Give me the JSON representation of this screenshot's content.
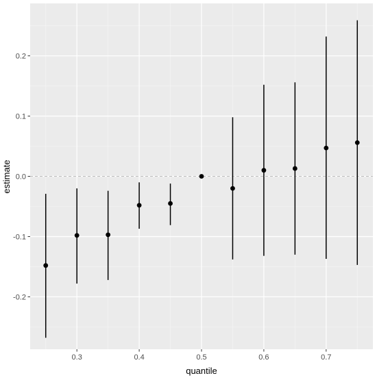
{
  "chart_data": {
    "type": "scatter",
    "style": "point estimates with error bars (ggplot2 grey theme)",
    "xlabel": "quantile",
    "ylabel": "estimate",
    "xlim": [
      0.225,
      0.775
    ],
    "ylim": [
      -0.287,
      0.287
    ],
    "x_ticks": [
      0.3,
      0.4,
      0.5,
      0.6,
      0.7
    ],
    "x_tick_labels": [
      "0.3",
      "0.4",
      "0.5",
      "0.6",
      "0.7"
    ],
    "y_ticks": [
      -0.2,
      -0.1,
      0.0,
      0.1,
      0.2
    ],
    "y_tick_labels": [
      "-0.2",
      "-0.1",
      "0.0",
      "0.1",
      "0.2"
    ],
    "reference_line": {
      "y": 0,
      "style": "dashed"
    },
    "grid": true,
    "colors": {
      "panel": "#EBEBEB",
      "grid_major": "#FFFFFF",
      "grid_minor": "#F5F5F5",
      "marks": "#000000",
      "reference_line": "#BEBEBE"
    },
    "points": [
      {
        "x": 0.25,
        "y": -0.148,
        "lower": -0.268,
        "upper": -0.029
      },
      {
        "x": 0.3,
        "y": -0.098,
        "lower": -0.178,
        "upper": -0.02
      },
      {
        "x": 0.35,
        "y": -0.097,
        "lower": -0.172,
        "upper": -0.024
      },
      {
        "x": 0.4,
        "y": -0.048,
        "lower": -0.087,
        "upper": -0.01
      },
      {
        "x": 0.45,
        "y": -0.045,
        "lower": -0.081,
        "upper": -0.012
      },
      {
        "x": 0.5,
        "y": 0.0,
        "lower": 0.0,
        "upper": 0.0
      },
      {
        "x": 0.55,
        "y": -0.02,
        "lower": -0.138,
        "upper": 0.098
      },
      {
        "x": 0.6,
        "y": 0.01,
        "lower": -0.132,
        "upper": 0.152
      },
      {
        "x": 0.65,
        "y": 0.013,
        "lower": -0.13,
        "upper": 0.156
      },
      {
        "x": 0.7,
        "y": 0.047,
        "lower": -0.137,
        "upper": 0.232
      },
      {
        "x": 0.75,
        "y": 0.056,
        "lower": -0.147,
        "upper": 0.259
      }
    ]
  }
}
